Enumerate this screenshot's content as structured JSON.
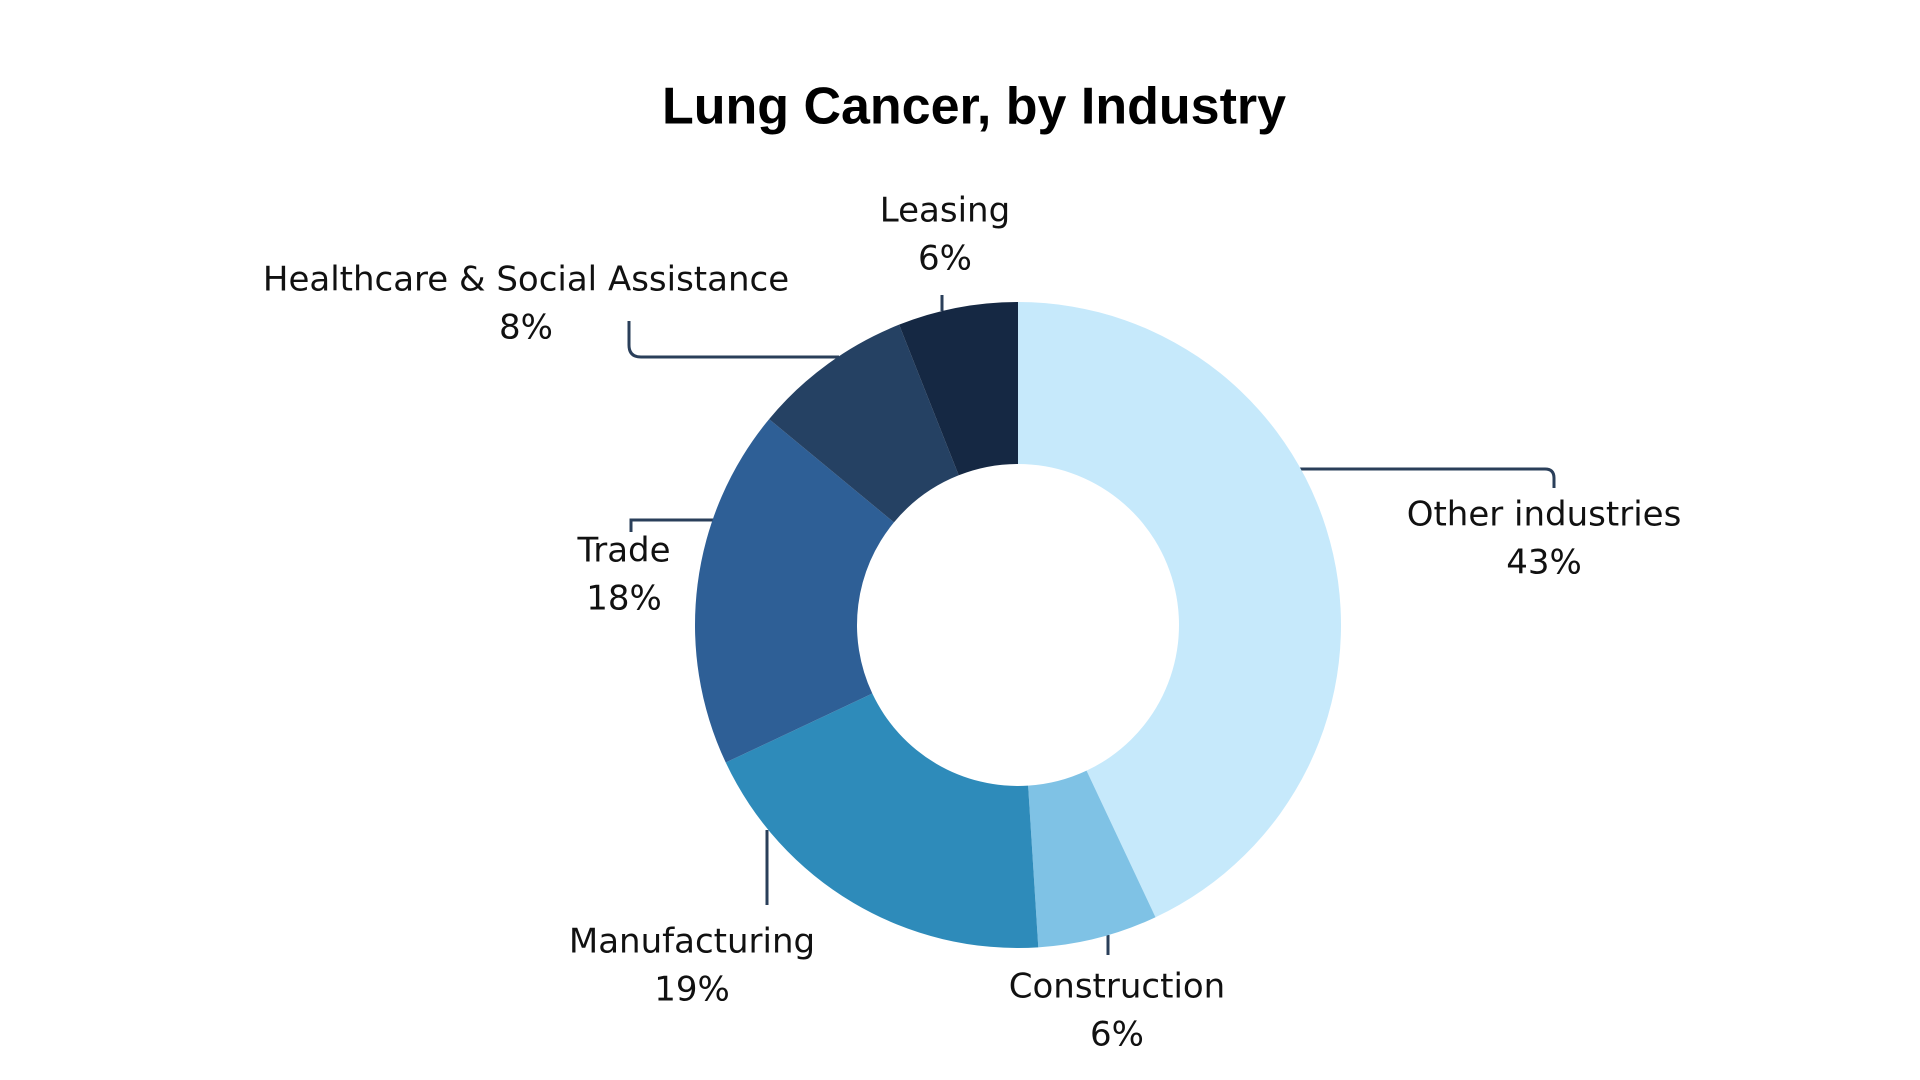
{
  "chart_data": {
    "type": "donut",
    "title": "Lung Cancer, by Industry",
    "categories": [
      "Other industries",
      "Construction",
      "Manufacturing",
      "Trade",
      "Healthcare & Social Assistance",
      "Leasing"
    ],
    "values": [
      43,
      6,
      19,
      18,
      8,
      6
    ],
    "value_labels": [
      "43%",
      "6%",
      "19%",
      "18%",
      "8%",
      "6%"
    ],
    "colors": [
      "#c6e9fb",
      "#7fc2e5",
      "#2e8bba",
      "#2e5f96",
      "#254163",
      "#152843"
    ]
  }
}
